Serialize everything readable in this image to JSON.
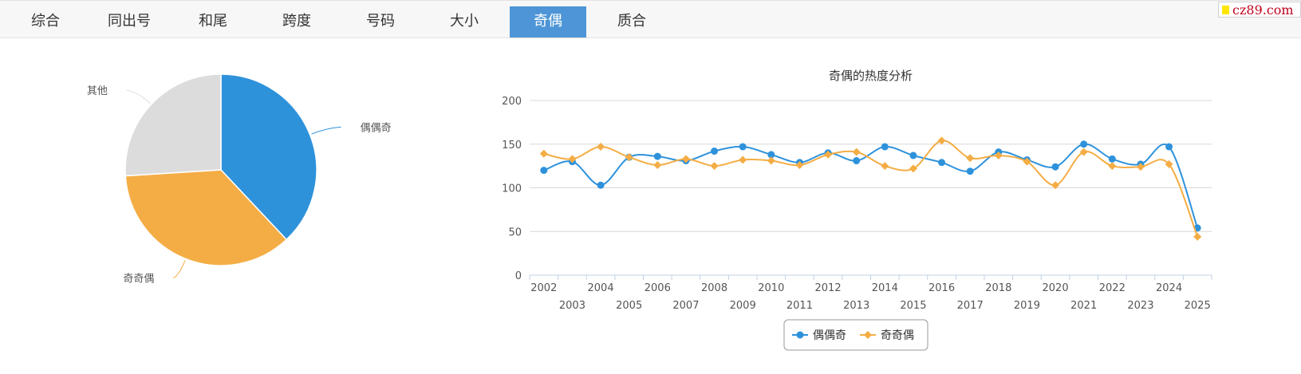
{
  "tabs": [
    "综合",
    "同出号",
    "和尾",
    "跨度",
    "号码",
    "大小",
    "奇偶",
    "质合"
  ],
  "active_tab": "奇偶",
  "site_logo": "cz89.com",
  "colors": {
    "blue": "#2e92db",
    "orange": "#f4ad45",
    "gray": "#dcdcdc",
    "active_tab": "#4d95d6"
  },
  "chart_data": [
    {
      "type": "pie",
      "slices": [
        {
          "label": "偶偶奇",
          "value": 38,
          "color": "#2e92db"
        },
        {
          "label": "奇奇偶",
          "value": 36,
          "color": "#f4ad45"
        },
        {
          "label": "其他",
          "value": 26,
          "color": "#dcdcdc"
        }
      ]
    },
    {
      "type": "line",
      "title": "奇偶的热度分析",
      "x": [
        2002,
        2003,
        2004,
        2005,
        2006,
        2007,
        2008,
        2009,
        2010,
        2011,
        2012,
        2013,
        2014,
        2015,
        2016,
        2017,
        2018,
        2019,
        2020,
        2021,
        2022,
        2023,
        2024,
        2025
      ],
      "ylim": [
        0,
        200
      ],
      "yticks": [
        0,
        50,
        100,
        150,
        200
      ],
      "grid": true,
      "legend": "bottom-center",
      "series": [
        {
          "name": "偶偶奇",
          "color": "#2e92db",
          "marker": "circle",
          "values": [
            120,
            130,
            103,
            135,
            136,
            131,
            142,
            147,
            138,
            129,
            140,
            131,
            147,
            137,
            129,
            119,
            141,
            132,
            124,
            150,
            133,
            127,
            147,
            54
          ]
        },
        {
          "name": "奇奇偶",
          "color": "#f4ad45",
          "marker": "diamond",
          "values": [
            139,
            133,
            147,
            135,
            126,
            133,
            125,
            132,
            131,
            126,
            138,
            141,
            125,
            122,
            154,
            134,
            137,
            130,
            103,
            141,
            125,
            124,
            127,
            44
          ]
        }
      ]
    }
  ]
}
